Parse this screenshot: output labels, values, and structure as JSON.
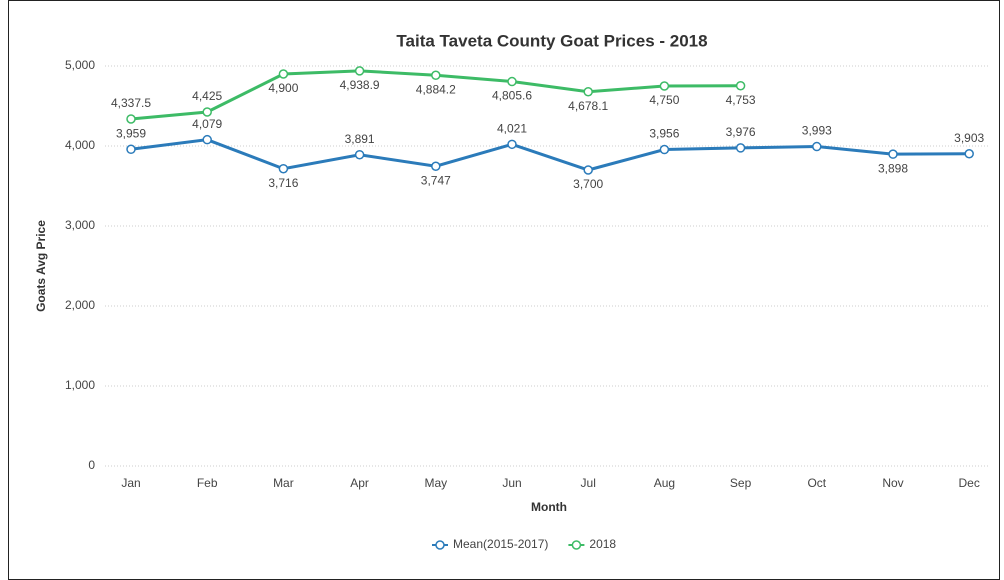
{
  "chart_data": {
    "type": "line",
    "title": "Taita Taveta County Goat Prices - 2018",
    "x_label": "Month",
    "y_label": "Goats Avg Price",
    "categories": [
      "Jan",
      "Feb",
      "Mar",
      "Apr",
      "May",
      "Jun",
      "Jul",
      "Aug",
      "Sep",
      "Oct",
      "Nov",
      "Dec"
    ],
    "ylim": [
      0,
      5000
    ],
    "yticks": [
      0,
      {
        "value": 1000,
        "label": "1,000"
      },
      {
        "value": 2000,
        "label": "2,000"
      },
      {
        "value": 3000,
        "label": "3,000"
      },
      {
        "value": 4000,
        "label": "4,000"
      },
      {
        "value": 5000,
        "label": "5,000"
      }
    ],
    "grid": true,
    "legend": "bottom",
    "series": [
      {
        "name": "Mean(2015-2017)",
        "color": "#2b7bba",
        "values": [
          3959,
          4079,
          3716,
          3891,
          3747,
          4021,
          3700,
          3956,
          3976,
          3993,
          3898,
          3903
        ],
        "value_labels": [
          "3,959",
          "4,079",
          "3,716",
          "3,891",
          "3,747",
          "4,021",
          "3,700",
          "3,956",
          "3,976",
          "3,993",
          "3,898",
          "3,903"
        ]
      },
      {
        "name": "2018",
        "color": "#3dbb66",
        "values": [
          4337.5,
          4425,
          4900,
          4938.9,
          4884.2,
          4805.6,
          4678.1,
          4750,
          4753,
          null,
          null,
          null
        ],
        "value_labels": [
          "4,337.5",
          "4,425",
          "4,900",
          "4,938.9",
          "4,884.2",
          "4,805.6",
          "4,678.1",
          "4,750",
          "4,753",
          null,
          null,
          null
        ]
      }
    ]
  }
}
